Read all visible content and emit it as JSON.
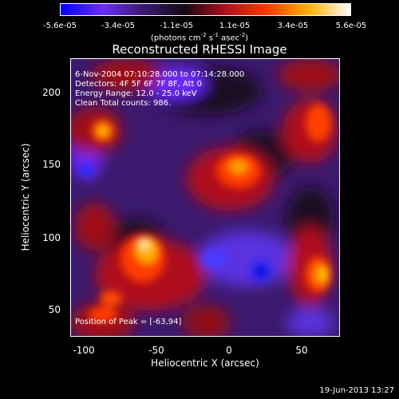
{
  "colorbar": {
    "tick_labels": [
      "-5.6e-05",
      "-3.4e-05",
      "-1.1e-05",
      "1.1e-05",
      "3.4e-05",
      "5.6e-05"
    ],
    "units": {
      "pre": "(photons cm",
      "e1": "-2",
      "mid1": " s",
      "e2": "-1",
      "mid2": " asec",
      "e3": "-2",
      "post": ")"
    },
    "colors": [
      "#0000ff",
      "#6a2cff",
      "#3b1a6e",
      "#140a14",
      "#b0101e",
      "#ff3a00",
      "#ffb000",
      "#ffffff"
    ]
  },
  "title": "Reconstructed RHESSI Image",
  "info": {
    "time": "6-Nov-2004 07:10:28.000 to 07:14:28.000",
    "detectors": "Detectors: 4F 5F 6F 7F 8F, Att 0",
    "energy": "Energy Range: 12.0 - 25.0 keV",
    "clean": "Clean    Total counts: 986.",
    "peak": "Position of Peak = [-63,94]"
  },
  "axes": {
    "x_label": "Heliocentric X (arcsec)",
    "y_label": "Heliocentric Y (arcsec)",
    "x_ticks": [
      "-100",
      "-50",
      "0",
      "50"
    ],
    "y_ticks": [
      "200",
      "150",
      "100",
      "50"
    ]
  },
  "footer": {
    "date": "19-Jun-2013 13:27"
  }
}
